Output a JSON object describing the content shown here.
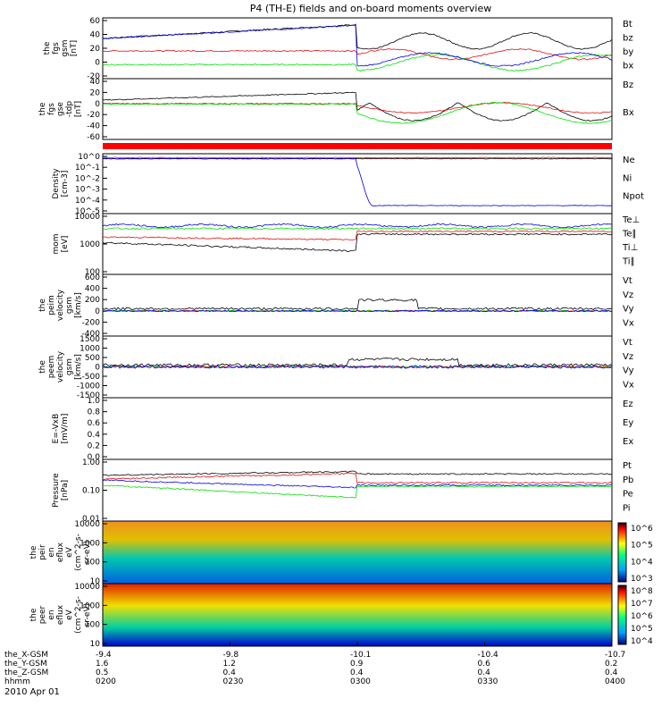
{
  "title": "P4 (TH-E) fields and on-board moments overview",
  "date": "2010 Apr 01",
  "colors": {
    "black": "#000000",
    "red": "#e01010",
    "green": "#00e000",
    "blue": "#0000e0"
  },
  "chart_data": {
    "type": "line",
    "x_range": [
      "0200",
      "0400"
    ],
    "xticks": [
      "0200",
      "0230",
      "0300",
      "0330",
      "0400"
    ],
    "footer": {
      "rows": [
        {
          "label": "the_X-GSM",
          "values": [
            "-9.4",
            "-9.8",
            "-10.1",
            "-10.4",
            "-10.7"
          ]
        },
        {
          "label": "the_Y-GSM",
          "values": [
            "1.6",
            "1.2",
            "0.9",
            "0.6",
            "0.2"
          ]
        },
        {
          "label": "the_Z-GSM",
          "values": [
            "0.5",
            "0.4",
            "0.4",
            "0.4",
            "0.4"
          ]
        },
        {
          "label": "hhmm",
          "values": [
            "0200",
            "0230",
            "0300",
            "0330",
            "0400"
          ]
        }
      ]
    },
    "panels": [
      {
        "ylabel": [
          "the",
          "fgs",
          "gsm",
          "[nT]"
        ],
        "yticks": [
          "60",
          "40",
          "20",
          "0",
          "-20"
        ],
        "ylim": [
          -28,
          62
        ],
        "legend": [
          {
            "name": "Bt",
            "color": "black"
          },
          {
            "name": "bz",
            "color": "red"
          },
          {
            "name": "by",
            "color": "green"
          },
          {
            "name": "bx",
            "color": "blue"
          }
        ]
      },
      {
        "ylabel": [
          "the",
          "fgs",
          "gse",
          "-tdp",
          "[nT]"
        ],
        "yticks": [
          "40",
          "20",
          "0",
          "-20",
          "-40",
          "-60"
        ],
        "ylim": [
          -70,
          45
        ],
        "legend": [
          {
            "name": "Bz",
            "color": "red"
          },
          {
            "name": "Bx",
            "color": "green"
          }
        ]
      },
      {
        "ylabel": [
          "Density",
          "[cm-3]"
        ],
        "yticks": [
          "10^0",
          "10^-1",
          "10^-2",
          "10^-3",
          "10^-4",
          "10^-5"
        ],
        "ylim": [
          -5.3,
          0.4
        ],
        "legend": [
          {
            "name": "Ne",
            "color": "red"
          },
          {
            "name": "Ni",
            "color": "black"
          },
          {
            "name": "Npot",
            "color": "blue"
          }
        ]
      },
      {
        "ylabel": [
          "mom",
          "[eV]"
        ],
        "yticks": [
          "10000",
          "1000",
          "100"
        ],
        "ylim": [
          2,
          4.1
        ],
        "legend": [
          {
            "name": "Te⊥",
            "color": "red"
          },
          {
            "name": "Te∥",
            "color": "black"
          },
          {
            "name": "Ti⊥",
            "color": "blue"
          },
          {
            "name": "Ti∥",
            "color": "green"
          }
        ]
      },
      {
        "ylabel": [
          "the",
          "peim",
          "velocity",
          "gsm",
          "[km/s]"
        ],
        "yticks": [
          "600",
          "400",
          "200",
          "0",
          "-200",
          "-400"
        ],
        "ylim": [
          -420,
          620
        ],
        "legend": [
          {
            "name": "Vt",
            "color": "black"
          },
          {
            "name": "Vz",
            "color": "red"
          },
          {
            "name": "Vy",
            "color": "green"
          },
          {
            "name": "Vx",
            "color": "blue"
          }
        ]
      },
      {
        "ylabel": [
          "the",
          "peem",
          "velocity",
          "gsm",
          "[km/s]"
        ],
        "yticks": [
          "1500",
          "1000",
          "500",
          "0",
          "-500",
          "-1000",
          "-1500"
        ],
        "ylim": [
          -1600,
          1600
        ],
        "legend": [
          {
            "name": "Vt",
            "color": "black"
          },
          {
            "name": "Vz",
            "color": "red"
          },
          {
            "name": "Vy",
            "color": "green"
          },
          {
            "name": "Vx",
            "color": "blue"
          }
        ]
      },
      {
        "ylabel": [
          "E=-VxB",
          "[mV/m]"
        ],
        "yticks": [
          "1.0",
          "0.8",
          "0.6",
          "0.4",
          "0.2",
          "0.0"
        ],
        "ylim": [
          0,
          1
        ],
        "legend": [
          {
            "name": "Ez",
            "color": "red"
          },
          {
            "name": "Ey",
            "color": "green"
          },
          {
            "name": "Ex",
            "color": "blue"
          }
        ]
      },
      {
        "ylabel": [
          "Pressure",
          "[nPa]"
        ],
        "yticks": [
          "1.00",
          "0.10",
          "0.01"
        ],
        "ylim": [
          -2.1,
          0.3
        ],
        "legend": [
          {
            "name": "Pt",
            "color": "black"
          },
          {
            "name": "Pb",
            "color": "red"
          },
          {
            "name": "Pe",
            "color": "green"
          },
          {
            "name": "Pi",
            "color": "blue"
          }
        ]
      },
      {
        "ylabel": [
          "the",
          "peir",
          "en",
          "eflux",
          "eV",
          "(cm^2-s-",
          "sr-eV)"
        ],
        "yticks": [
          "10000",
          "1000",
          "100",
          "10"
        ],
        "colorbar": [
          "10^6",
          "10^5",
          "10^4",
          "10^3"
        ]
      },
      {
        "ylabel": [
          "the",
          "peer",
          "en",
          "eflux",
          "eV",
          "(cm^2-s-",
          "sr-eV)"
        ],
        "yticks": [
          "10000",
          "1000",
          "100",
          "10"
        ],
        "colorbar": [
          "10^8",
          "10^7",
          "10^6",
          "10^5",
          "10^4"
        ]
      }
    ]
  }
}
